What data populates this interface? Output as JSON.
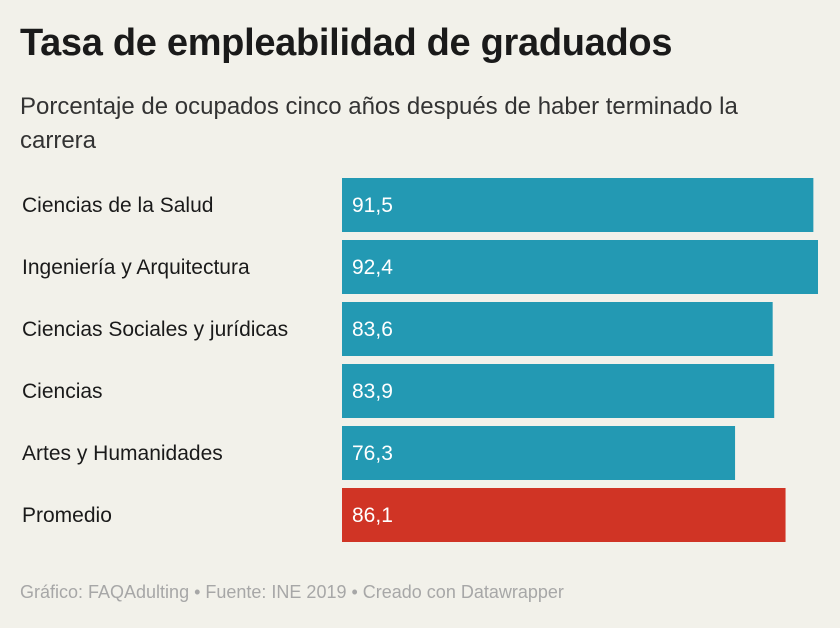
{
  "chart_data": {
    "type": "bar",
    "orientation": "horizontal",
    "title": "Tasa de empleabilidad de graduados",
    "subtitle": "Porcentaje de ocupados cinco años después de haber terminado la carrera",
    "categories": [
      "Ciencias de la Salud",
      "Ingeniería y Arquitectura",
      "Ciencias Sociales y jurídicas",
      "Ciencias",
      "Artes y Humanidades",
      "Promedio"
    ],
    "values": [
      91.5,
      92.4,
      83.6,
      83.9,
      76.3,
      86.1
    ],
    "value_labels": [
      "91,5",
      "92,4",
      "83,6",
      "83,9",
      "76,3",
      "86,1"
    ],
    "xlim": [
      0,
      92.4
    ],
    "grid": false,
    "colors": {
      "default": "#2399b3",
      "highlight": "#d03425"
    },
    "highlight_category": "Promedio"
  },
  "footer": "Gráfico: FAQAdulting • Fuente: INE 2019 • Creado con Datawrapper"
}
